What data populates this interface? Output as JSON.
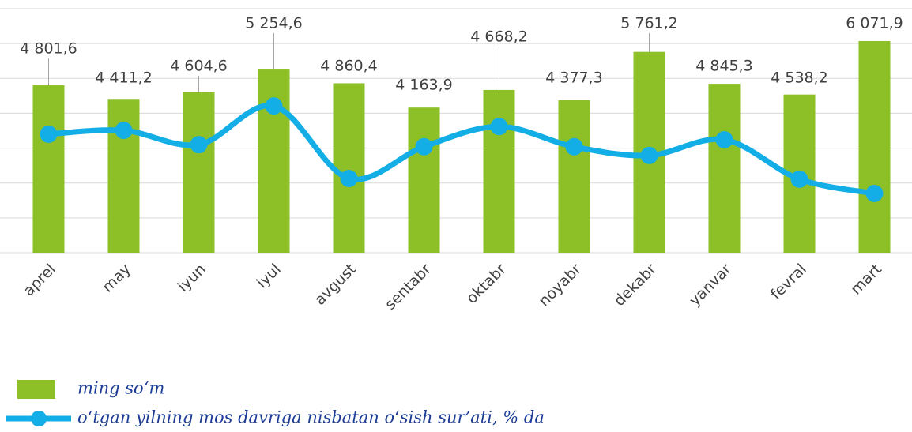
{
  "chart_data": {
    "type": "bar_line",
    "categories": [
      "aprel",
      "may",
      "iyun",
      "iyul",
      "avgust",
      "sentabr",
      "oktabr",
      "noyabr",
      "dekabr",
      "yanvar",
      "fevral",
      "mart"
    ],
    "series": [
      {
        "name": "ming so‘m",
        "type": "bar",
        "color": "#8dc026",
        "values": [
          4801.6,
          4411.2,
          4604.6,
          5254.6,
          4860.4,
          4163.9,
          4668.2,
          4377.3,
          5761.2,
          4845.3,
          4538.2,
          6071.9
        ],
        "value_labels": [
          "4 801,6",
          "4 411,2",
          "4 604,6",
          "5 254,6",
          "4 860,4",
          "4 163,9",
          "4 668,2",
          "4 377,3",
          "5 761,2",
          "4 845,3",
          "4 538,2",
          "6 071,9"
        ]
      },
      {
        "name": "o‘tgan yilning mos davriga nisbatan o‘sish sur’ati, % da",
        "type": "line",
        "axis": "y2",
        "color": "#14aee6",
        "values": [
          114.0,
          115.1,
          111.0,
          122.1,
          101.3,
          110.4,
          116.2,
          110.4,
          107.9,
          112.4,
          101.1,
          97.0
        ]
      }
    ],
    "ylim": [
      0,
      7000
    ],
    "yticks": [
      0,
      1000,
      2000,
      3000,
      4000,
      5000,
      6000,
      7000
    ],
    "ytick_labels": false,
    "y2lim": [
      80,
      150
    ],
    "grid": true
  }
}
